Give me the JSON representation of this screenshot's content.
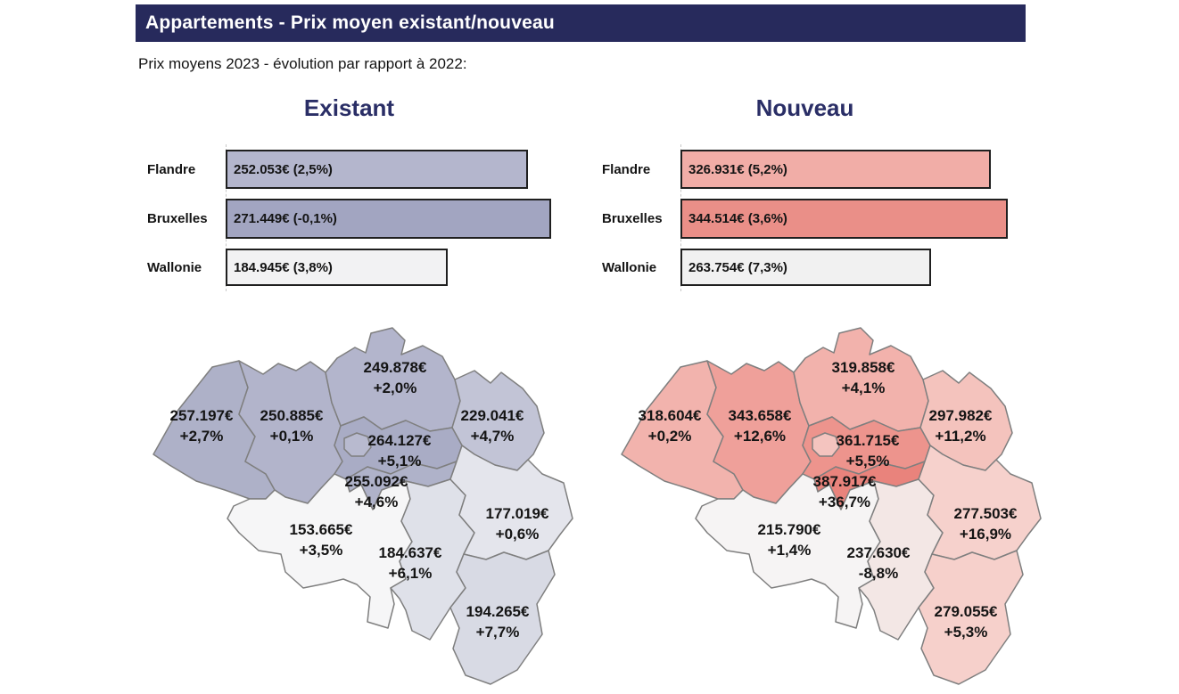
{
  "page": {
    "title": "Appartements - Prix moyen existant/nouveau",
    "subtitle": "Prix moyens 2023 - évolution par rapport à 2022:"
  },
  "colors": {
    "title_bar_bg": "#272A5C",
    "heading_text": "#2A2E66",
    "bar_border": "#1f1f1f",
    "map_stroke": "#7f7f7f"
  },
  "sections": [
    {
      "id": "existant",
      "heading": "Existant",
      "bars": [
        {
          "label": "Flandre",
          "text": "252.053€ (2,5%)",
          "value": 252053,
          "fill": "#B4B6CD"
        },
        {
          "label": "Bruxelles",
          "text": "271.449€ (-0,1%)",
          "value": 271449,
          "fill": "#A2A5C1"
        },
        {
          "label": "Wallonie",
          "text": "184.945€ (3,8%)",
          "value": 184945,
          "fill": "#F2F2F3"
        }
      ],
      "map": {
        "provinces": [
          {
            "id": "west-vlaanderen",
            "price": "257.197€",
            "change": "+2,7%",
            "fill": "#AEB1C8"
          },
          {
            "id": "oost-vlaanderen",
            "price": "250.885€",
            "change": "+0,1%",
            "fill": "#B2B4CB"
          },
          {
            "id": "antwerpen",
            "price": "249.878€",
            "change": "+2,0%",
            "fill": "#B3B5CC"
          },
          {
            "id": "limburg",
            "price": "229.041€",
            "change": "+4,7%",
            "fill": "#C2C4D6"
          },
          {
            "id": "vlaams-brabant",
            "price": "264.127€",
            "change": "+5,1%",
            "fill": "#A9ACC5"
          },
          {
            "id": "bruxelles-enclave",
            "price": "",
            "change": "",
            "fill": "#B8BACF"
          },
          {
            "id": "brabant-wallon",
            "price": "255.092€",
            "change": "+4,6%",
            "fill": "#AFB2C9"
          },
          {
            "id": "hainaut",
            "price": "153.665€",
            "change": "+3,5%",
            "fill": "#F6F6F7"
          },
          {
            "id": "namur",
            "price": "184.637€",
            "change": "+6,1%",
            "fill": "#DFE1E9"
          },
          {
            "id": "liege",
            "price": "177.019€",
            "change": "+0,6%",
            "fill": "#E4E5EC"
          },
          {
            "id": "luxembourg",
            "price": "194.265€",
            "change": "+7,7%",
            "fill": "#D8DAE4"
          }
        ]
      }
    },
    {
      "id": "nouveau",
      "heading": "Nouveau",
      "bars": [
        {
          "label": "Flandre",
          "text": "326.931€ (5,2%)",
          "value": 326931,
          "fill": "#F1ADA7"
        },
        {
          "label": "Bruxelles",
          "text": "344.514€ (3,6%)",
          "value": 344514,
          "fill": "#EA8F88"
        },
        {
          "label": "Wallonie",
          "text": "263.754€ (7,3%)",
          "value": 263754,
          "fill": "#F1F1F1"
        }
      ],
      "map": {
        "provinces": [
          {
            "id": "west-vlaanderen",
            "price": "318.604€",
            "change": "+0,2%",
            "fill": "#F2B3AD"
          },
          {
            "id": "oost-vlaanderen",
            "price": "343.658€",
            "change": "+12,6%",
            "fill": "#EFA09A"
          },
          {
            "id": "antwerpen",
            "price": "319.858€",
            "change": "+4,1%",
            "fill": "#F2B2AC"
          },
          {
            "id": "limburg",
            "price": "297.982€",
            "change": "+11,2%",
            "fill": "#F4C3BD"
          },
          {
            "id": "vlaams-brabant",
            "price": "361.715€",
            "change": "+5,5%",
            "fill": "#ED948D"
          },
          {
            "id": "bruxelles-enclave",
            "price": "",
            "change": "",
            "fill": "#F4C4BF"
          },
          {
            "id": "brabant-wallon",
            "price": "387.917€",
            "change": "+36,7%",
            "fill": "#E9837C"
          },
          {
            "id": "hainaut",
            "price": "215.790€",
            "change": "+1,4%",
            "fill": "#F6F4F4"
          },
          {
            "id": "namur",
            "price": "237.630€",
            "change": "-8,8%",
            "fill": "#F3E7E5"
          },
          {
            "id": "liege",
            "price": "277.503€",
            "change": "+16,9%",
            "fill": "#F6D1CC"
          },
          {
            "id": "luxembourg",
            "price": "279.055€",
            "change": "+5,3%",
            "fill": "#F6D0CB"
          }
        ]
      }
    }
  ],
  "chart_data": [
    {
      "type": "bar",
      "title": "Existant",
      "categories": [
        "Flandre",
        "Bruxelles",
        "Wallonie"
      ],
      "values": [
        252053,
        271449,
        184945
      ],
      "change_pct": [
        2.5,
        -0.1,
        3.8
      ],
      "bar_labels": [
        "252.053€ (2,5%)",
        "271.449€ (-0,1%)",
        "184.945€ (3,8%)"
      ],
      "orientation": "horizontal",
      "xlim": [
        0,
        271449
      ],
      "grid": false,
      "legend": false
    },
    {
      "type": "bar",
      "title": "Nouveau",
      "categories": [
        "Flandre",
        "Bruxelles",
        "Wallonie"
      ],
      "values": [
        326931,
        344514,
        263754
      ],
      "change_pct": [
        5.2,
        3.6,
        7.3
      ],
      "bar_labels": [
        "326.931€ (5,2%)",
        "344.514€ (3,6%)",
        "263.754€ (7,3%)"
      ],
      "orientation": "horizontal",
      "xlim": [
        0,
        344514
      ],
      "grid": false,
      "legend": false
    },
    {
      "type": "heatmap",
      "title": "Existant - prix moyens par province (carte Belgique)",
      "regions": [
        {
          "id": "west-vlaanderen",
          "price_eur": 257197,
          "change_pct": 2.7
        },
        {
          "id": "oost-vlaanderen",
          "price_eur": 250885,
          "change_pct": 0.1
        },
        {
          "id": "antwerpen",
          "price_eur": 249878,
          "change_pct": 2.0
        },
        {
          "id": "limburg",
          "price_eur": 229041,
          "change_pct": 4.7
        },
        {
          "id": "vlaams-brabant",
          "price_eur": 264127,
          "change_pct": 5.1
        },
        {
          "id": "brabant-wallon",
          "price_eur": 255092,
          "change_pct": 4.6
        },
        {
          "id": "hainaut",
          "price_eur": 153665,
          "change_pct": 3.5
        },
        {
          "id": "namur",
          "price_eur": 184637,
          "change_pct": 6.1
        },
        {
          "id": "liege",
          "price_eur": 177019,
          "change_pct": 0.6
        },
        {
          "id": "luxembourg",
          "price_eur": 194265,
          "change_pct": 7.7
        }
      ]
    },
    {
      "type": "heatmap",
      "title": "Nouveau - prix moyens par province (carte Belgique)",
      "regions": [
        {
          "id": "west-vlaanderen",
          "price_eur": 318604,
          "change_pct": 0.2
        },
        {
          "id": "oost-vlaanderen",
          "price_eur": 343658,
          "change_pct": 12.6
        },
        {
          "id": "antwerpen",
          "price_eur": 319858,
          "change_pct": 4.1
        },
        {
          "id": "limburg",
          "price_eur": 297982,
          "change_pct": 11.2
        },
        {
          "id": "vlaams-brabant",
          "price_eur": 361715,
          "change_pct": 5.5
        },
        {
          "id": "brabant-wallon",
          "price_eur": 387917,
          "change_pct": 36.7
        },
        {
          "id": "hainaut",
          "price_eur": 215790,
          "change_pct": 1.4
        },
        {
          "id": "namur",
          "price_eur": 237630,
          "change_pct": -8.8
        },
        {
          "id": "liege",
          "price_eur": 277503,
          "change_pct": 16.9
        },
        {
          "id": "luxembourg",
          "price_eur": 279055,
          "change_pct": 5.3
        }
      ]
    }
  ]
}
